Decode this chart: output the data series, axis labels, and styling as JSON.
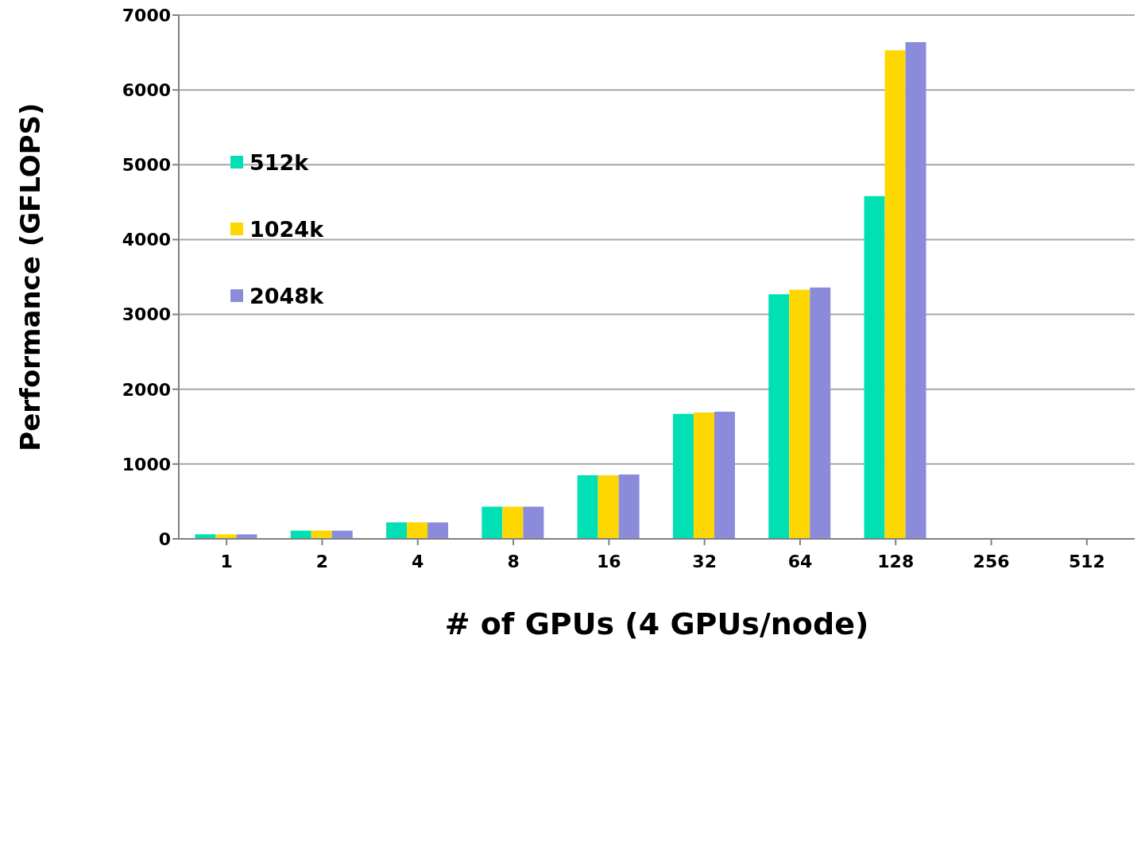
{
  "chart_data": {
    "type": "bar",
    "xlabel": "# of GPUs (4 GPUs/node)",
    "ylabel": "Performance (GFLOPS)",
    "categories": [
      "1",
      "2",
      "4",
      "8",
      "16",
      "32",
      "64",
      "128",
      "256",
      "512"
    ],
    "series": [
      {
        "name": "512k",
        "color": "#00e0b4",
        "values": [
          60,
          110,
          220,
          430,
          850,
          1670,
          3270,
          4580,
          null,
          null
        ]
      },
      {
        "name": "1024k",
        "color": "#ffd700",
        "values": [
          60,
          110,
          220,
          430,
          850,
          1690,
          3330,
          6530,
          null,
          null
        ]
      },
      {
        "name": "2048k",
        "color": "#8b8bdc",
        "values": [
          60,
          110,
          220,
          430,
          860,
          1700,
          3360,
          6640,
          null,
          null
        ]
      }
    ],
    "ylim": [
      0,
      7000
    ],
    "yticks": [
      0,
      1000,
      2000,
      3000,
      4000,
      5000,
      6000,
      7000
    ],
    "grid": "y",
    "legend": "top left"
  }
}
